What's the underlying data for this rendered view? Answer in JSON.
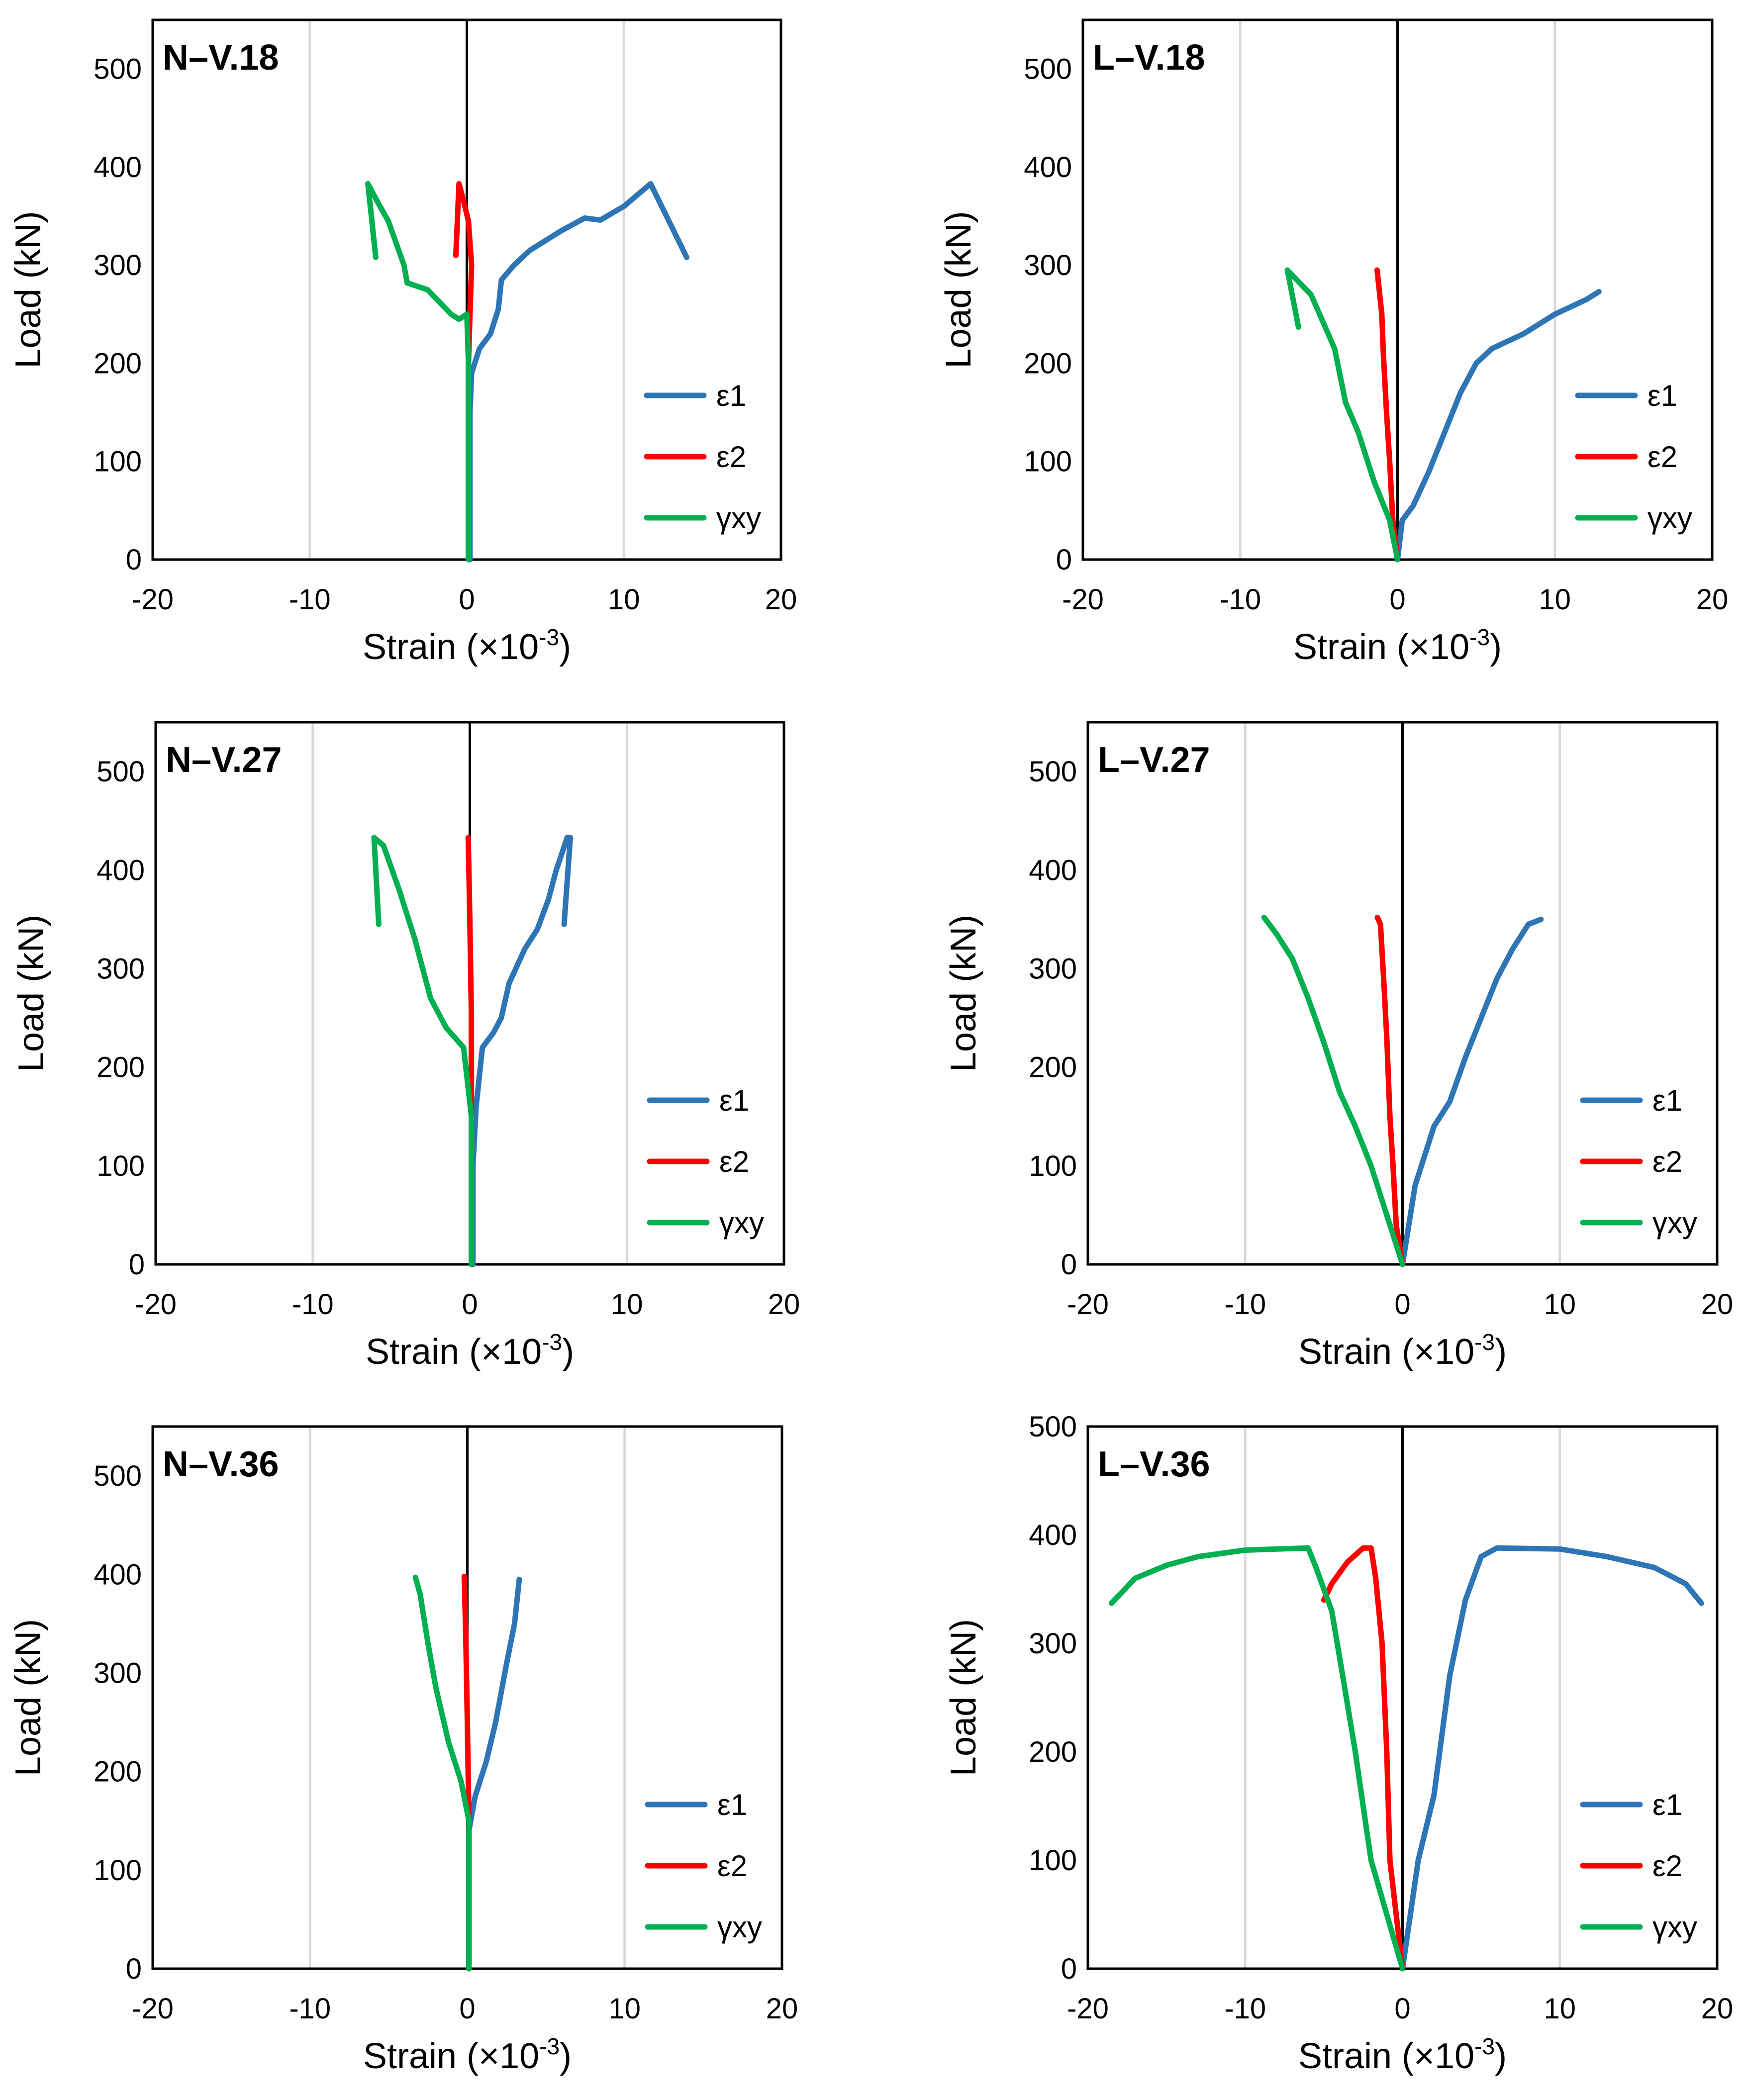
{
  "colors": {
    "eps1": "#2E75B6",
    "eps2": "#FF0000",
    "gamma": "#00B050"
  },
  "legend_labels": [
    "ε1",
    "ε2",
    "γxy"
  ],
  "chart_data": [
    {
      "type": "line",
      "title": "N–V.18",
      "xlabel": "Strain (×10",
      "xlabel_sup": "-3",
      "xlabel_end": ")",
      "ylabel": "Load (kN)",
      "xlim": [
        -20,
        20
      ],
      "ylim": [
        0,
        550
      ],
      "xticks": [
        "-20",
        "-10",
        "0",
        "10",
        "20"
      ],
      "yticks": [
        "0",
        "100",
        "200",
        "300",
        "400",
        "500"
      ],
      "series": [
        {
          "name": "ε1",
          "color": "#2E75B6",
          "points": [
            [
              0.2,
              0
            ],
            [
              0.2,
              150
            ],
            [
              0.3,
              190
            ],
            [
              0.8,
              215
            ],
            [
              1.5,
              230
            ],
            [
              2.0,
              255
            ],
            [
              2.2,
              285
            ],
            [
              3,
              300
            ],
            [
              4,
              315
            ],
            [
              6,
              335
            ],
            [
              7.5,
              348
            ],
            [
              8.5,
              346
            ],
            [
              10,
              360
            ],
            [
              11.7,
              383
            ],
            [
              14,
              308
            ]
          ]
        },
        {
          "name": "ε2",
          "color": "#FF0000",
          "points": [
            [
              0.1,
              0
            ],
            [
              0.1,
              200
            ],
            [
              0.2,
              250
            ],
            [
              0.3,
              300
            ],
            [
              0.1,
              345
            ],
            [
              -0.2,
              365
            ],
            [
              -0.5,
              383
            ],
            [
              -0.7,
              310
            ]
          ]
        },
        {
          "name": "γxy",
          "color": "#00B050",
          "points": [
            [
              0.1,
              0
            ],
            [
              0.1,
              200
            ],
            [
              0.0,
              250
            ],
            [
              -0.5,
              245
            ],
            [
              -1,
              250
            ],
            [
              -2.5,
              275
            ],
            [
              -3.8,
              282
            ],
            [
              -4,
              300
            ],
            [
              -5,
              345
            ],
            [
              -5.7,
              365
            ],
            [
              -6.3,
              383
            ],
            [
              -5.8,
              308
            ]
          ]
        }
      ]
    },
    {
      "type": "line",
      "title": "L–V.18",
      "xlabel": "Strain (×10",
      "xlabel_sup": "-3",
      "xlabel_end": ")",
      "ylabel": "Load (kN)",
      "xlim": [
        -20,
        20
      ],
      "ylim": [
        0,
        550
      ],
      "xticks": [
        "-20",
        "-10",
        "0",
        "10",
        "20"
      ],
      "yticks": [
        "0",
        "100",
        "200",
        "300",
        "400",
        "500"
      ],
      "series": [
        {
          "name": "ε1",
          "color": "#2E75B6",
          "points": [
            [
              0,
              0
            ],
            [
              0.3,
              40
            ],
            [
              1,
              55
            ],
            [
              2,
              90
            ],
            [
              3,
              130
            ],
            [
              4,
              170
            ],
            [
              5,
              200
            ],
            [
              6,
              215
            ],
            [
              8,
              230
            ],
            [
              10,
              250
            ],
            [
              12,
              265
            ],
            [
              12.8,
              273
            ]
          ]
        },
        {
          "name": "ε2",
          "color": "#FF0000",
          "points": [
            [
              0,
              0
            ],
            [
              -0.3,
              40
            ],
            [
              -0.5,
              100
            ],
            [
              -0.7,
              150
            ],
            [
              -0.9,
              210
            ],
            [
              -1.0,
              250
            ],
            [
              -1.2,
              280
            ],
            [
              -1.3,
              295
            ]
          ]
        },
        {
          "name": "γxy",
          "color": "#00B050",
          "points": [
            [
              0,
              0
            ],
            [
              -0.5,
              40
            ],
            [
              -1.5,
              80
            ],
            [
              -2.5,
              130
            ],
            [
              -3.3,
              160
            ],
            [
              -4,
              215
            ],
            [
              -5.5,
              270
            ],
            [
              -6.7,
              290
            ],
            [
              -7,
              295
            ],
            [
              -6.3,
              237
            ]
          ]
        }
      ]
    },
    {
      "type": "line",
      "title": "N–V.27",
      "xlabel": "Strain (×10",
      "xlabel_sup": "-3",
      "xlabel_end": ")",
      "ylabel": "Load (kN)",
      "xlim": [
        -20,
        20
      ],
      "ylim": [
        0,
        550
      ],
      "xticks": [
        "-20",
        "-10",
        "0",
        "10",
        "20"
      ],
      "yticks": [
        "0",
        "100",
        "200",
        "300",
        "400",
        "500"
      ],
      "series": [
        {
          "name": "ε1",
          "color": "#2E75B6",
          "points": [
            [
              0.2,
              0
            ],
            [
              0.2,
              100
            ],
            [
              0.4,
              160
            ],
            [
              0.8,
              220
            ],
            [
              1.5,
              235
            ],
            [
              2,
              250
            ],
            [
              2.5,
              285
            ],
            [
              3.5,
              320
            ],
            [
              4.3,
              340
            ],
            [
              5,
              370
            ],
            [
              5.5,
              400
            ],
            [
              6.2,
              433
            ],
            [
              6.4,
              433
            ],
            [
              6.0,
              345
            ]
          ]
        },
        {
          "name": "ε2",
          "color": "#FF0000",
          "points": [
            [
              0.1,
              0
            ],
            [
              0.1,
              150
            ],
            [
              0.1,
              250
            ],
            [
              0.0,
              350
            ],
            [
              -0.1,
              433
            ]
          ]
        },
        {
          "name": "γxy",
          "color": "#00B050",
          "points": [
            [
              0.1,
              0
            ],
            [
              0.1,
              150
            ],
            [
              -0.4,
              220
            ],
            [
              -1.5,
              240
            ],
            [
              -2.5,
              270
            ],
            [
              -3.5,
              330
            ],
            [
              -4.5,
              380
            ],
            [
              -5.5,
              425
            ],
            [
              -6.1,
              433
            ],
            [
              -5.8,
              345
            ]
          ]
        }
      ]
    },
    {
      "type": "line",
      "title": "L–V.27",
      "xlabel": "Strain (×10",
      "xlabel_sup": "-3",
      "xlabel_end": ")",
      "ylabel": "Load (kN)",
      "xlim": [
        -20,
        20
      ],
      "ylim": [
        0,
        550
      ],
      "xticks": [
        "-20",
        "-10",
        "0",
        "10",
        "20"
      ],
      "yticks": [
        "0",
        "100",
        "200",
        "300",
        "400",
        "500"
      ],
      "series": [
        {
          "name": "ε1",
          "color": "#2E75B6",
          "points": [
            [
              0,
              0
            ],
            [
              0.8,
              80
            ],
            [
              2,
              140
            ],
            [
              3,
              165
            ],
            [
              4,
              210
            ],
            [
              5,
              250
            ],
            [
              6,
              290
            ],
            [
              7,
              320
            ],
            [
              8,
              345
            ],
            [
              8.8,
              350
            ]
          ]
        },
        {
          "name": "ε2",
          "color": "#FF0000",
          "points": [
            [
              0,
              0
            ],
            [
              -0.4,
              40
            ],
            [
              -0.6,
              100
            ],
            [
              -0.8,
              150
            ],
            [
              -1.0,
              230
            ],
            [
              -1.2,
              290
            ],
            [
              -1.4,
              345
            ],
            [
              -1.6,
              352
            ]
          ]
        },
        {
          "name": "γxy",
          "color": "#00B050",
          "points": [
            [
              0,
              0
            ],
            [
              -1,
              50
            ],
            [
              -2,
              100
            ],
            [
              -3,
              140
            ],
            [
              -4,
              175
            ],
            [
              -5,
              225
            ],
            [
              -6,
              270
            ],
            [
              -7,
              310
            ],
            [
              -8,
              335
            ],
            [
              -8.8,
              352
            ]
          ]
        }
      ]
    },
    {
      "type": "line",
      "title": "N–V.36",
      "xlabel": "Strain (×10",
      "xlabel_sup": "-3",
      "xlabel_end": ")",
      "ylabel": "Load (kN)",
      "xlim": [
        -20,
        20
      ],
      "ylim": [
        0,
        550
      ],
      "xticks": [
        "-20",
        "-10",
        "0",
        "10",
        "20"
      ],
      "yticks": [
        "0",
        "100",
        "200",
        "300",
        "400",
        "500"
      ],
      "series": [
        {
          "name": "ε1",
          "color": "#2E75B6",
          "points": [
            [
              0.1,
              0
            ],
            [
              0.1,
              140
            ],
            [
              0.5,
              175
            ],
            [
              1.2,
              210
            ],
            [
              1.8,
              250
            ],
            [
              2.5,
              310
            ],
            [
              3,
              350
            ],
            [
              3.3,
              395
            ]
          ]
        },
        {
          "name": "ε2",
          "color": "#FF0000",
          "points": [
            [
              0.1,
              0
            ],
            [
              0.1,
              150
            ],
            [
              0.0,
              250
            ],
            [
              -0.1,
              340
            ],
            [
              -0.2,
              398
            ]
          ]
        },
        {
          "name": "γxy",
          "color": "#00B050",
          "points": [
            [
              0.1,
              0
            ],
            [
              0.1,
              150
            ],
            [
              -0.4,
              190
            ],
            [
              -1.2,
              230
            ],
            [
              -2,
              285
            ],
            [
              -2.5,
              330
            ],
            [
              -3,
              380
            ],
            [
              -3.3,
              397
            ]
          ]
        }
      ]
    },
    {
      "type": "line",
      "title": "L–V.36",
      "xlabel": "Strain (×10",
      "xlabel_sup": "-3",
      "xlabel_end": ")",
      "ylabel": "Load (kN)",
      "xlim": [
        -20,
        20
      ],
      "ylim": [
        0,
        500
      ],
      "xticks": [
        "-20",
        "-10",
        "0",
        "10",
        "20"
      ],
      "yticks": [
        "0",
        "100",
        "200",
        "300",
        "400",
        "500"
      ],
      "series": [
        {
          "name": "ε1",
          "color": "#2E75B6",
          "points": [
            [
              0,
              0
            ],
            [
              0.5,
              50
            ],
            [
              1,
              100
            ],
            [
              2,
              160
            ],
            [
              3,
              270
            ],
            [
              4,
              340
            ],
            [
              5,
              380
            ],
            [
              6,
              388
            ],
            [
              10,
              387
            ],
            [
              13,
              380
            ],
            [
              16,
              370
            ],
            [
              18,
              355
            ],
            [
              19,
              337
            ]
          ]
        },
        {
          "name": "ε2",
          "color": "#FF0000",
          "points": [
            [
              0,
              0
            ],
            [
              -0.4,
              50
            ],
            [
              -0.8,
              100
            ],
            [
              -1,
              200
            ],
            [
              -1.3,
              300
            ],
            [
              -1.7,
              360
            ],
            [
              -2,
              388
            ],
            [
              -2.5,
              388
            ],
            [
              -3.5,
              375
            ],
            [
              -4.5,
              355
            ],
            [
              -5,
              340
            ]
          ]
        },
        {
          "name": "γxy",
          "color": "#00B050",
          "points": [
            [
              0,
              0
            ],
            [
              -1,
              50
            ],
            [
              -2,
              100
            ],
            [
              -2.5,
              150
            ],
            [
              -3,
              200
            ],
            [
              -3.8,
              270
            ],
            [
              -4.5,
              330
            ],
            [
              -5.5,
              370
            ],
            [
              -6,
              388
            ],
            [
              -8,
              387
            ],
            [
              -10,
              386
            ],
            [
              -13,
              380
            ],
            [
              -15,
              372
            ],
            [
              -17,
              360
            ],
            [
              -18.5,
              337
            ]
          ]
        }
      ]
    }
  ]
}
